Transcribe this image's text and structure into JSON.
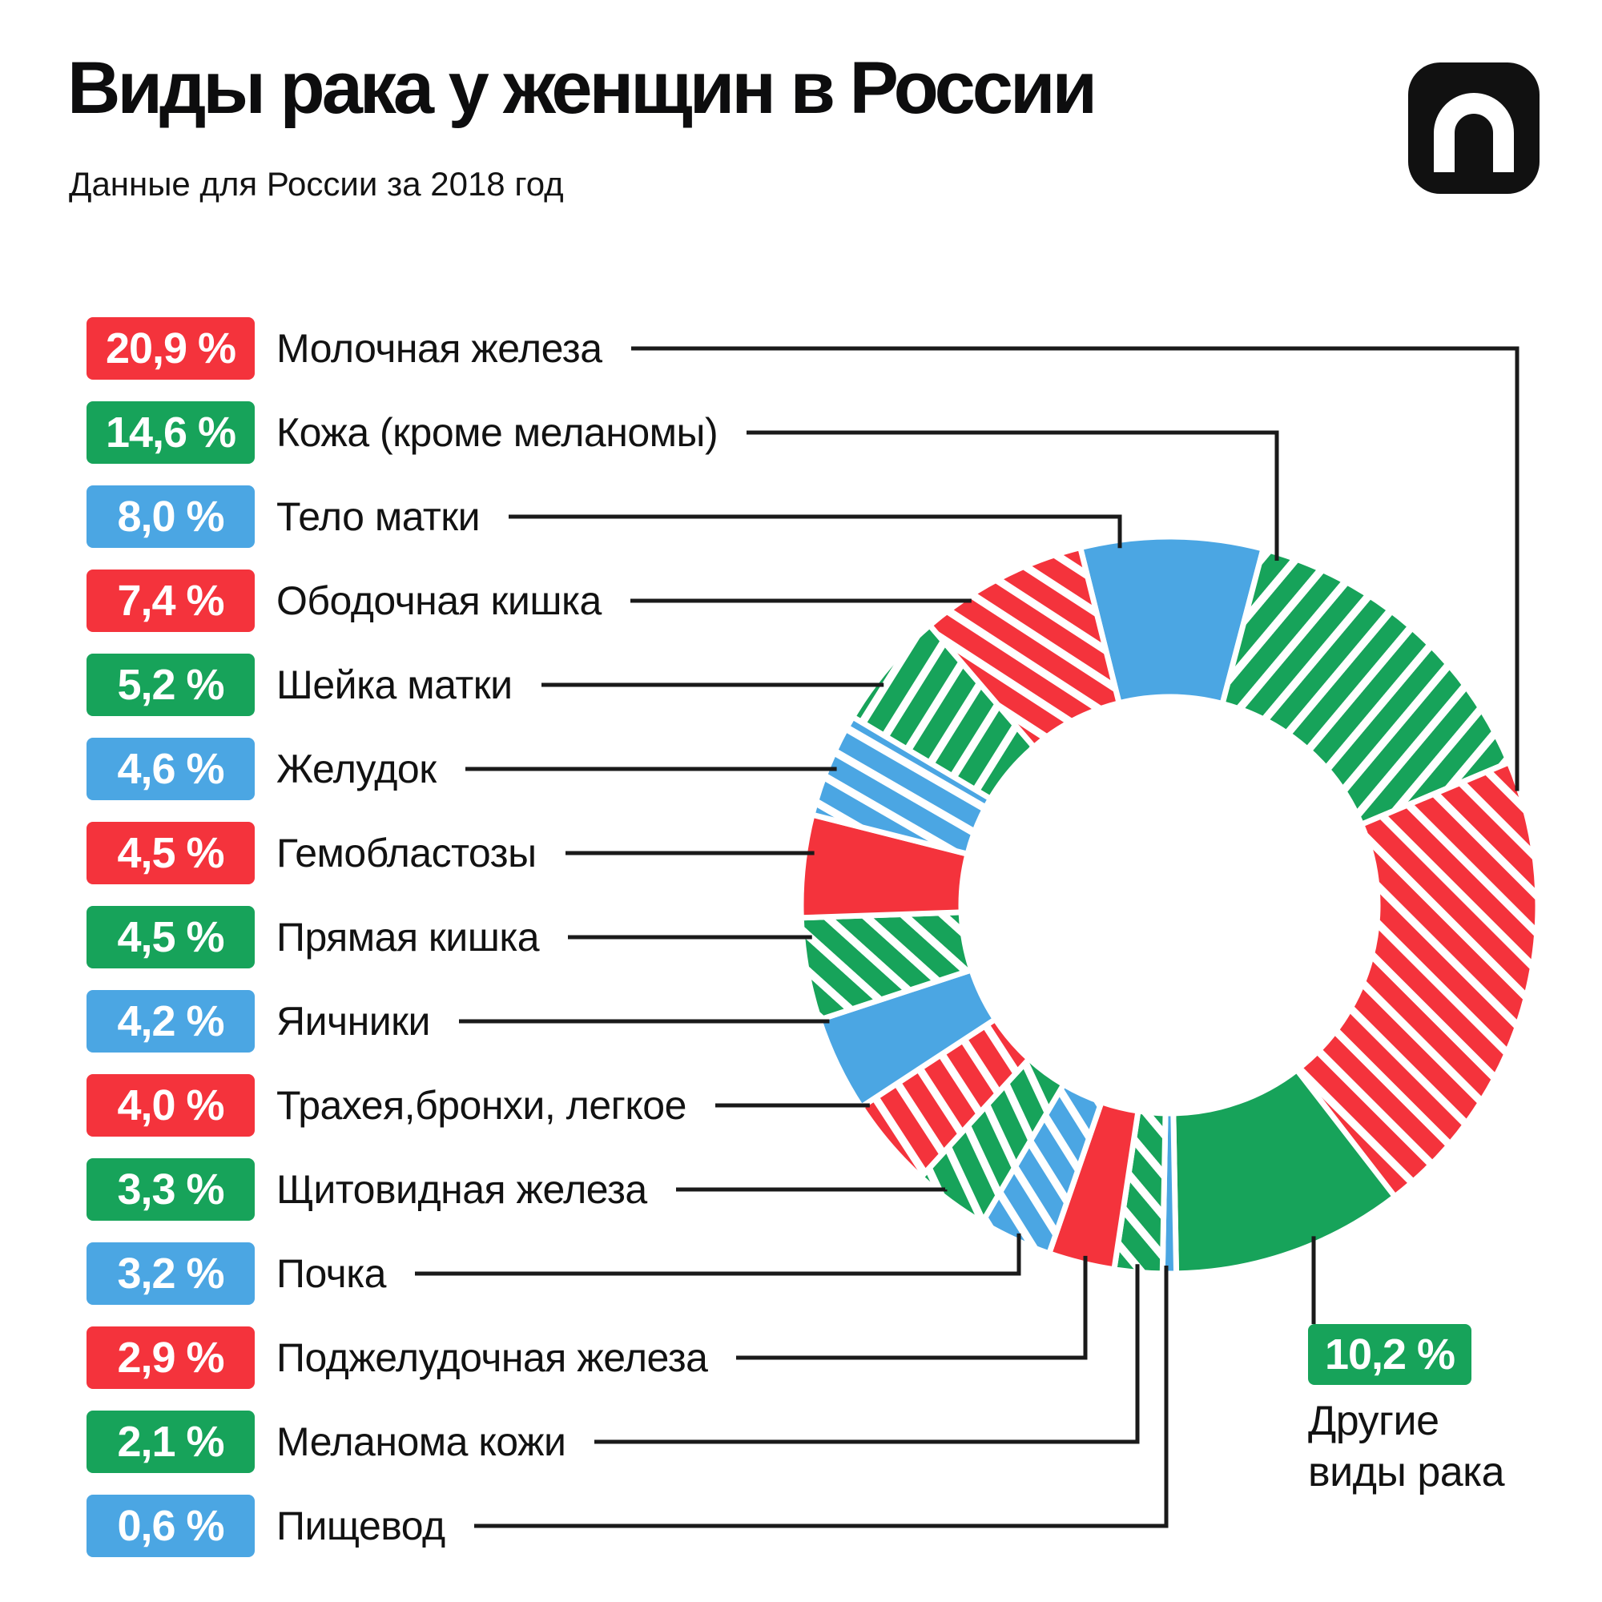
{
  "page": {
    "background": "#FFFFFF"
  },
  "header": {
    "title": "Виды рака у женщин в России",
    "subtitle": "Данные для России за 2018 год",
    "logo_icon": "n-arch-logo"
  },
  "colors": {
    "red": "#F4333C",
    "green": "#17A35A",
    "blue": "#4BA6E3",
    "badge_text": "#FFFFFF",
    "text": "#111111",
    "connector": "#1A1A1A",
    "logo_bg": "#111111"
  },
  "legend": {
    "items": [
      {
        "value_text": "20,9 %",
        "label": "Молочная железа",
        "color": "red"
      },
      {
        "value_text": "14,6 %",
        "label": "Кожа (кроме меланомы)",
        "color": "green"
      },
      {
        "value_text": "8,0 %",
        "label": "Тело матки",
        "color": "blue"
      },
      {
        "value_text": "7,4 %",
        "label": "Ободочная кишка",
        "color": "red"
      },
      {
        "value_text": "5,2 %",
        "label": "Шейка матки",
        "color": "green"
      },
      {
        "value_text": "4,6 %",
        "label": "Желудок",
        "color": "blue"
      },
      {
        "value_text": "4,5 %",
        "label": "Гемобластозы",
        "color": "red"
      },
      {
        "value_text": "4,5 %",
        "label": "Прямая кишка",
        "color": "green"
      },
      {
        "value_text": "4,2 %",
        "label": "Яичники",
        "color": "blue"
      },
      {
        "value_text": "4,0 %",
        "label": "Трахея,бронхи, легкое",
        "color": "red"
      },
      {
        "value_text": "3,3 %",
        "label": "Щитовидная железа",
        "color": "green"
      },
      {
        "value_text": "3,2 %",
        "label": "Почка",
        "color": "blue"
      },
      {
        "value_text": "2,9 %",
        "label": "Поджелудочная железа",
        "color": "red"
      },
      {
        "value_text": "2,1 %",
        "label": "Меланома кожи",
        "color": "green"
      },
      {
        "value_text": "0,6 %",
        "label": "Пищевод",
        "color": "blue"
      }
    ]
  },
  "other_segment": {
    "value_text": "10,2 %",
    "label": "Другие\nвиды рака",
    "color": "green"
  },
  "chart_data": {
    "type": "pie",
    "subtype": "donut",
    "title": "Виды рака у женщин в России",
    "subtitle": "Данные для России за 2018 год",
    "unit": "percent",
    "direction": "clockwise",
    "start_angle_deg": -14,
    "donut_hole_ratio": 0.565,
    "legend_position": "left",
    "segments": [
      {
        "label": "Тело матки",
        "value": 8.0,
        "value_text": "8,0 %",
        "color": "blue",
        "hatched": false
      },
      {
        "label": "Кожа (кроме меланомы)",
        "value": 14.6,
        "value_text": "14,6 %",
        "color": "green",
        "hatched": true,
        "hatch_angle_deg": 40
      },
      {
        "label": "Молочная железа",
        "value": 20.9,
        "value_text": "20,9 %",
        "color": "red",
        "hatched": true,
        "hatch_angle_deg": -45
      },
      {
        "label": "Другие виды рака",
        "value": 10.2,
        "value_text": "10,2 %",
        "color": "green",
        "hatched": false
      },
      {
        "label": "Пищевод",
        "value": 0.6,
        "value_text": "0,6 %",
        "color": "blue",
        "hatched": false
      },
      {
        "label": "Меланома кожи",
        "value": 2.1,
        "value_text": "2,1 %",
        "color": "green",
        "hatched": true,
        "hatch_angle_deg": -40
      },
      {
        "label": "Поджелудочная железа",
        "value": 2.9,
        "value_text": "2,9 %",
        "color": "red",
        "hatched": false
      },
      {
        "label": "Почка",
        "value": 3.2,
        "value_text": "3,2 %",
        "color": "blue",
        "hatched": true,
        "hatch_angle_deg": -32
      },
      {
        "label": "Щитовидная железа",
        "value": 3.3,
        "value_text": "3,3 %",
        "color": "green",
        "hatched": true,
        "hatch_angle_deg": -25
      },
      {
        "label": "Трахея,бронхи, легкое",
        "value": 4.0,
        "value_text": "4,0 %",
        "color": "red",
        "hatched": true,
        "hatch_angle_deg": -33
      },
      {
        "label": "Яичники",
        "value": 4.2,
        "value_text": "4,2 %",
        "color": "blue",
        "hatched": false
      },
      {
        "label": "Прямая кишка",
        "value": 4.5,
        "value_text": "4,5 %",
        "color": "green",
        "hatched": true,
        "hatch_angle_deg": -48
      },
      {
        "label": "Гемобластозы",
        "value": 4.5,
        "value_text": "4,5 %",
        "color": "red",
        "hatched": false
      },
      {
        "label": "Желудок",
        "value": 4.6,
        "value_text": "4,6 %",
        "color": "blue",
        "hatched": true,
        "hatch_angle_deg": -60
      },
      {
        "label": "Шейка матки",
        "value": 5.2,
        "value_text": "5,2 %",
        "color": "green",
        "hatched": true,
        "hatch_angle_deg": 32
      },
      {
        "label": "Ободочная кишка",
        "value": 7.4,
        "value_text": "7,4 %",
        "color": "red",
        "hatched": true,
        "hatch_angle_deg": -57
      }
    ]
  }
}
